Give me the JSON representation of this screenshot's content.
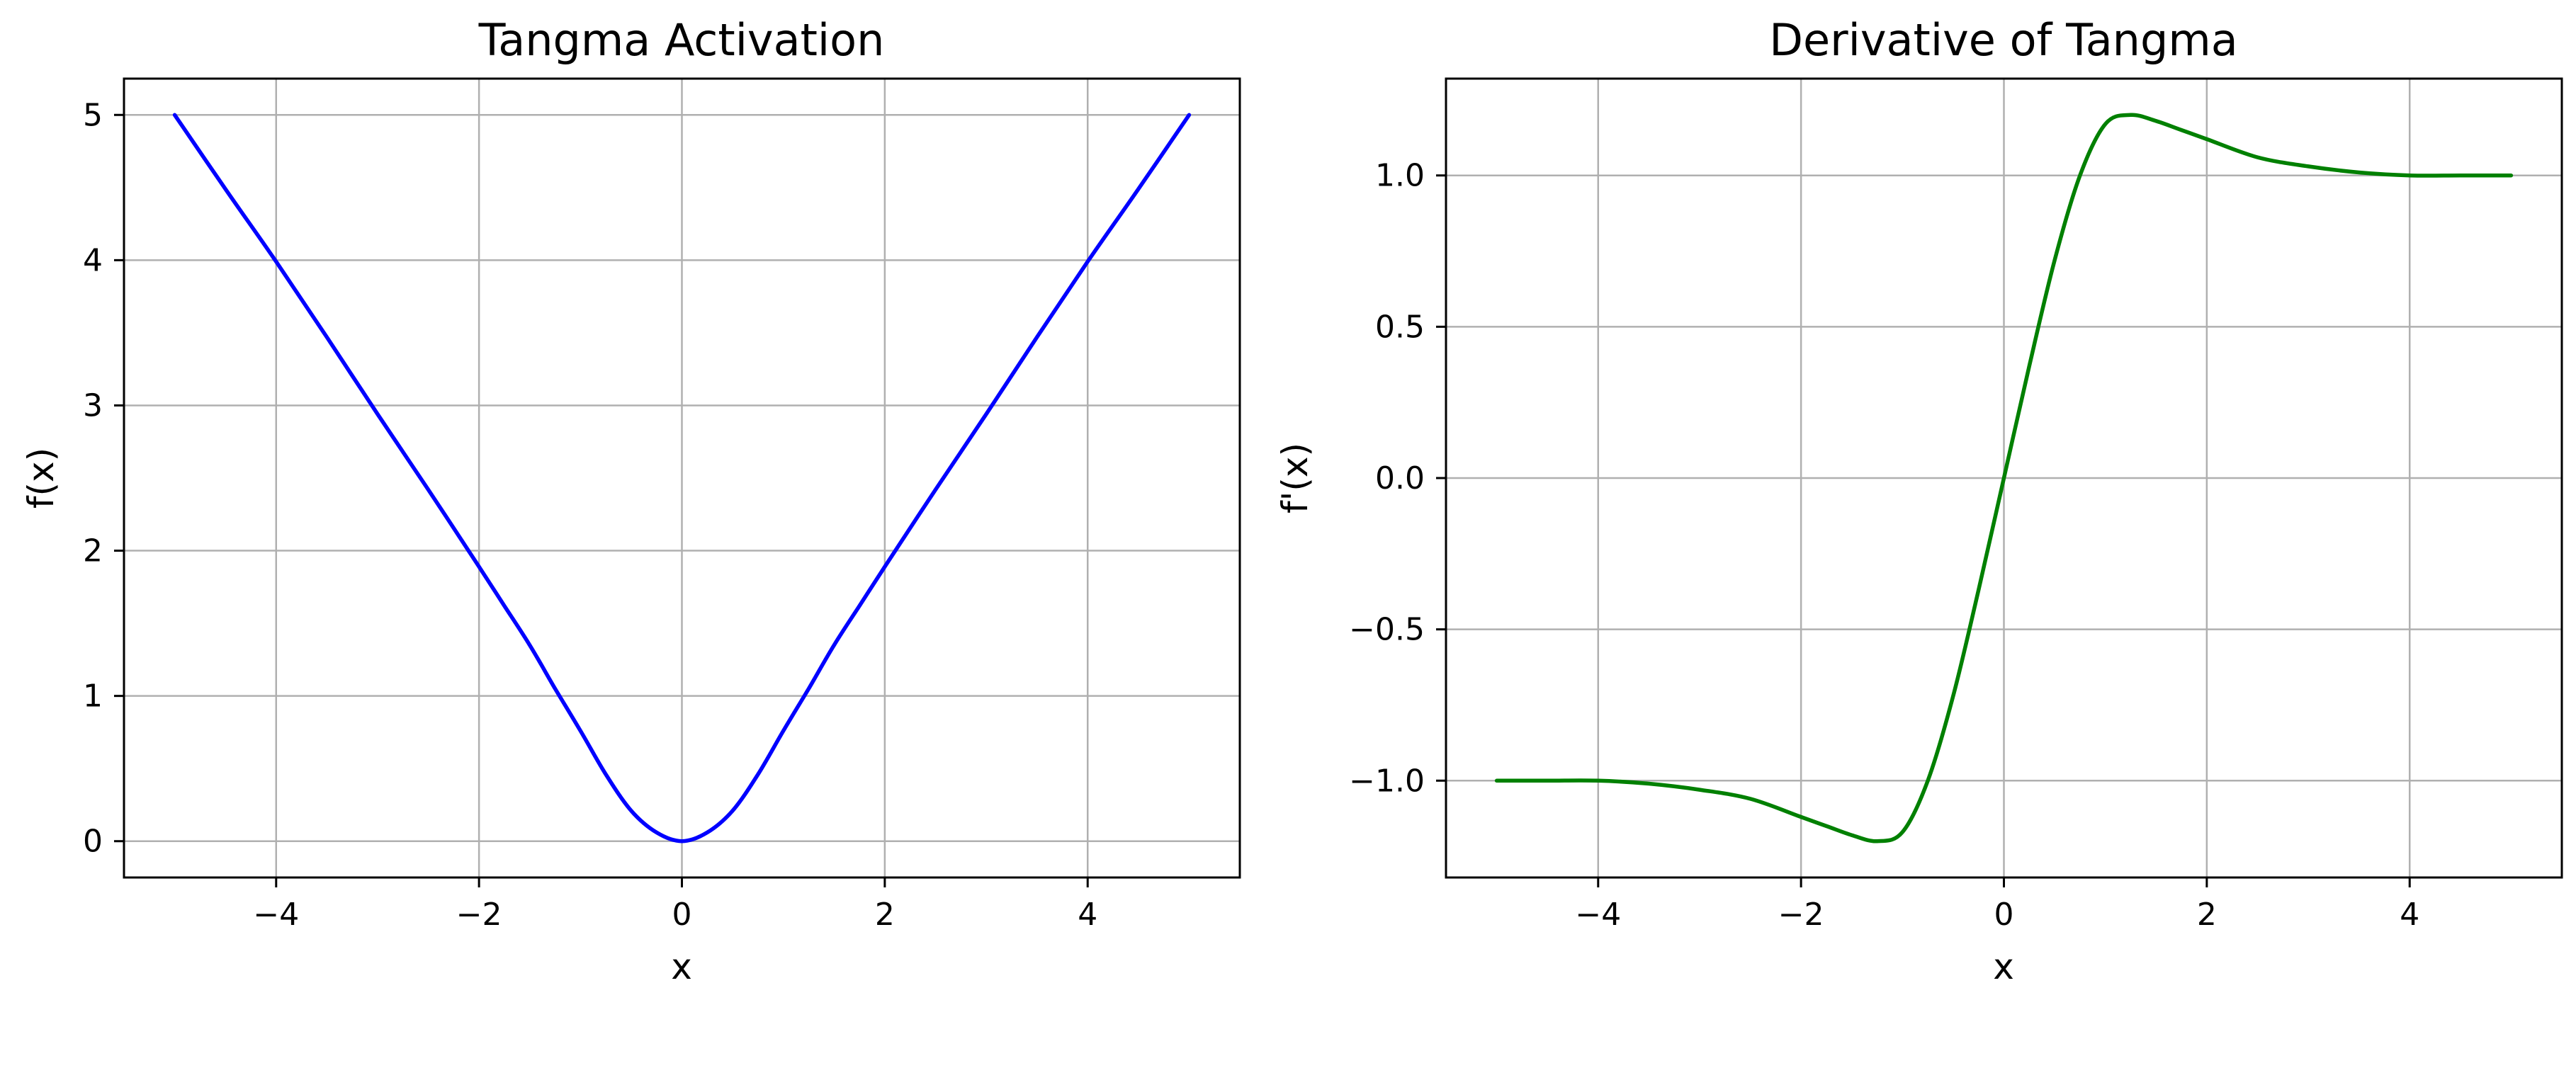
{
  "chart_data": [
    {
      "type": "line",
      "title": "Tangma Activation",
      "xlabel": "x",
      "ylabel": "f(x)",
      "xlim": [
        -5.5,
        5.5
      ],
      "ylim": [
        -0.25,
        5.25
      ],
      "xticks": [
        -4,
        -2,
        0,
        2,
        4
      ],
      "xtick_labels": [
        "−4",
        "−2",
        "0",
        "2",
        "4"
      ],
      "yticks": [
        0,
        1,
        2,
        3,
        4,
        5
      ],
      "ytick_labels": [
        "0",
        "1",
        "2",
        "3",
        "4",
        "5"
      ],
      "grid": true,
      "series": [
        {
          "color": "#0000ff",
          "x": [
            -5,
            -4.5,
            -4,
            -3.5,
            -3,
            -2.5,
            -2,
            -1.75,
            -1.5,
            -1.25,
            -1,
            -0.75,
            -0.5,
            -0.25,
            0,
            0.25,
            0.5,
            0.75,
            1,
            1.25,
            1.5,
            1.75,
            2,
            2.5,
            3,
            3.5,
            4,
            4.5,
            5
          ],
          "y": [
            5.0,
            4.49,
            3.99,
            3.47,
            2.94,
            2.42,
            1.89,
            1.62,
            1.35,
            1.05,
            0.76,
            0.46,
            0.21,
            0.06,
            0.0,
            0.06,
            0.21,
            0.46,
            0.76,
            1.05,
            1.35,
            1.62,
            1.89,
            2.42,
            2.94,
            3.47,
            3.99,
            4.49,
            5.0
          ]
        }
      ]
    },
    {
      "type": "line",
      "title": "Derivative of Tangma",
      "xlabel": "x",
      "ylabel": "f'(x)",
      "xlim": [
        -5.5,
        5.5
      ],
      "ylim": [
        -1.32,
        1.32
      ],
      "xticks": [
        -4,
        -2,
        0,
        2,
        4
      ],
      "xtick_labels": [
        "−4",
        "−2",
        "0",
        "2",
        "4"
      ],
      "yticks": [
        -1.0,
        -0.5,
        0.0,
        0.5,
        1.0
      ],
      "ytick_labels": [
        "−1.0",
        "−0.5",
        "0.0",
        "0.5",
        "1.0"
      ],
      "grid": true,
      "series": [
        {
          "color": "#008000",
          "x": [
            -5,
            -4.5,
            -4,
            -3.5,
            -3,
            -2.5,
            -2,
            -1.75,
            -1.5,
            -1.25,
            -1,
            -0.75,
            -0.5,
            -0.25,
            0,
            0.25,
            0.5,
            0.75,
            1,
            1.25,
            1.5,
            1.75,
            2,
            2.5,
            3,
            3.5,
            4,
            4.5,
            5
          ],
          "y": [
            -1.0,
            -1.0,
            -1.0,
            -1.01,
            -1.03,
            -1.06,
            -1.12,
            -1.15,
            -1.18,
            -1.2,
            -1.17,
            -1.0,
            -0.72,
            -0.37,
            0.0,
            0.37,
            0.72,
            1.0,
            1.17,
            1.2,
            1.18,
            1.15,
            1.12,
            1.06,
            1.03,
            1.01,
            1.0,
            1.0,
            1.0
          ]
        }
      ]
    }
  ]
}
